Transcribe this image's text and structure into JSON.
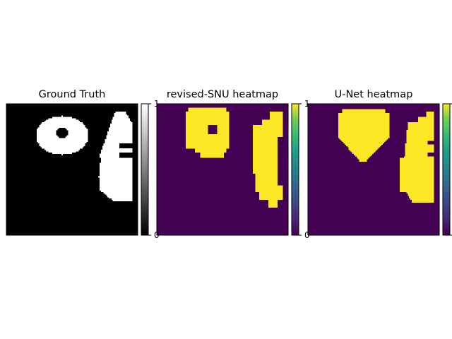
{
  "chart_data": [
    {
      "type": "heatmap",
      "title": "Ground Truth",
      "colormap": "gray",
      "colorbar": {
        "min": 0,
        "max": 1,
        "ticks": [
          "0",
          "1"
        ]
      },
      "xlabel": "",
      "ylabel": "",
      "grid": false,
      "shapes": [
        {
          "name": "ring",
          "outer_rows": [
            9,
            38
          ],
          "outer_cols": [
            22,
            62
          ],
          "hole_rows": [
            18,
            25
          ],
          "hole_cols": [
            38,
            46
          ]
        },
        {
          "name": "right-blob",
          "rows": [
            6,
            73
          ],
          "cols": [
            70,
            95
          ]
        }
      ]
    },
    {
      "type": "heatmap",
      "title": "revised-SNU heatmap",
      "colormap": "viridis",
      "colorbar": {
        "min": 0,
        "max": 1,
        "ticks": [
          "0",
          "1"
        ]
      },
      "xlabel": "",
      "ylabel": "",
      "grid": false,
      "shapes": [
        {
          "name": "ring",
          "outer_rows": [
            3,
            40
          ],
          "outer_cols": [
            22,
            54
          ],
          "hole_rows": [
            16,
            23
          ],
          "hole_cols": [
            39,
            45
          ]
        },
        {
          "name": "right-blob",
          "rows": [
            6,
            78
          ],
          "cols": [
            73,
            95
          ]
        }
      ]
    },
    {
      "type": "heatmap",
      "title": "U-Net heatmap",
      "colormap": "viridis",
      "colorbar": {
        "min": 0,
        "max": 1,
        "ticks": [
          "0",
          "1"
        ]
      },
      "xlabel": "",
      "ylabel": "",
      "grid": false,
      "shapes": [
        {
          "name": "blob-left",
          "rows": [
            4,
            43
          ],
          "cols": [
            22,
            62
          ]
        },
        {
          "name": "right-blob",
          "rows": [
            6,
            74
          ],
          "cols": [
            69,
            95
          ]
        }
      ]
    }
  ],
  "colors": {
    "gray_low": "#000000",
    "gray_high": "#ffffff",
    "viridis_low": "#440154",
    "viridis_high": "#fde725"
  }
}
